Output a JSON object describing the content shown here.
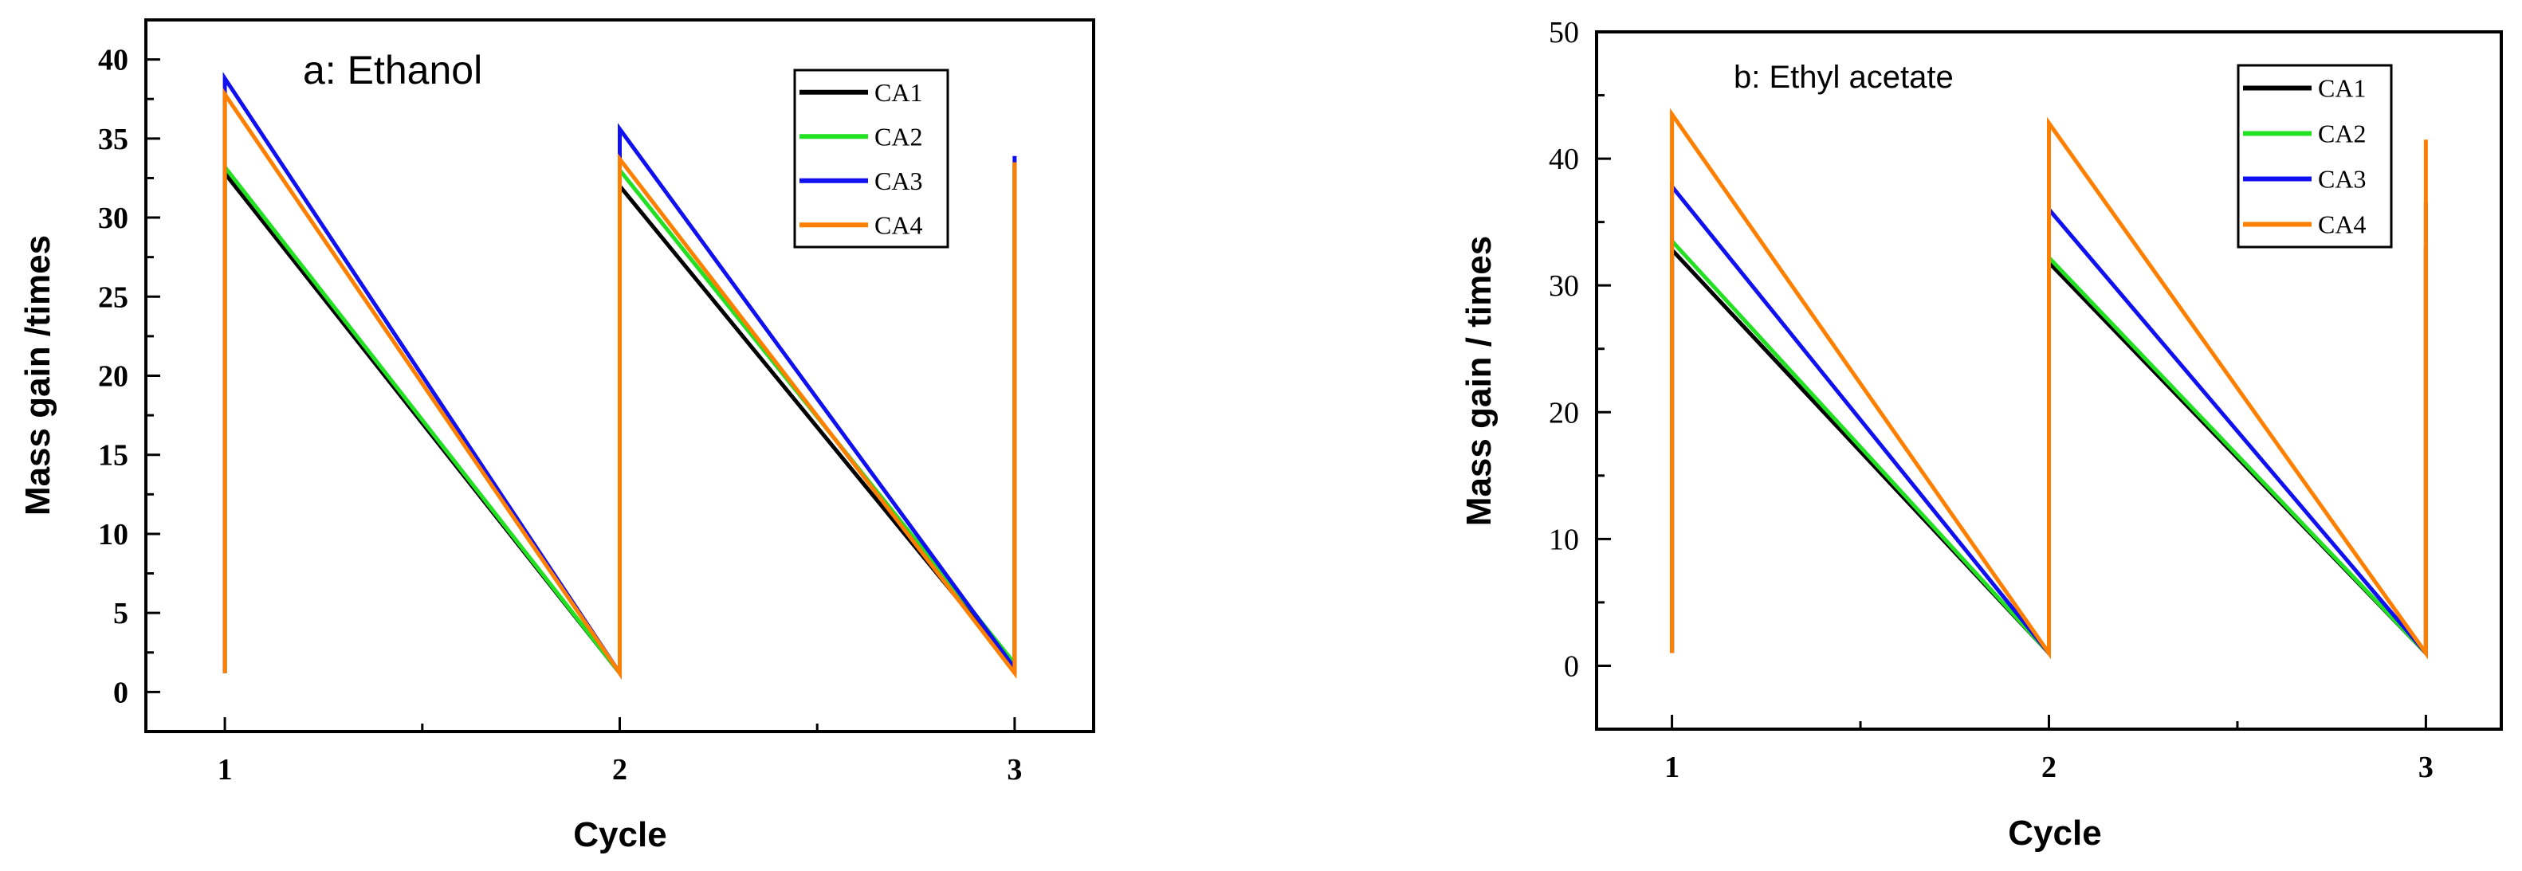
{
  "chart_data": [
    {
      "type": "line",
      "title": "a: Ethanol",
      "xlabel": "Cycle",
      "ylabel": "Mass gain /times",
      "xlim": [
        0.8,
        3.2
      ],
      "ylim": [
        -2.5,
        42.5
      ],
      "xticks": [
        1,
        2,
        3
      ],
      "xtick_labels": [
        "1",
        "2",
        "3"
      ],
      "yticks": [
        0,
        5,
        10,
        15,
        20,
        25,
        30,
        35,
        40
      ],
      "ytick_labels": [
        "0",
        "5",
        "10",
        "15",
        "20",
        "25",
        "30",
        "35",
        "40"
      ],
      "legend": "top-right",
      "series": [
        {
          "name": "CA1",
          "color": "#000000",
          "x": [
            1,
            1,
            2,
            2,
            3,
            3
          ],
          "y": [
            1.2,
            32.8,
            1.2,
            32.0,
            1.5,
            33.5
          ]
        },
        {
          "name": "CA2",
          "color": "#22e022",
          "x": [
            1,
            1,
            2,
            2,
            3,
            3
          ],
          "y": [
            1.2,
            33.2,
            1.2,
            33.0,
            1.8,
            33.5
          ]
        },
        {
          "name": "CA3",
          "color": "#1010f0",
          "x": [
            1,
            1,
            2,
            2,
            3,
            3
          ],
          "y": [
            1.2,
            38.8,
            1.2,
            35.6,
            1.5,
            33.9
          ]
        },
        {
          "name": "CA4",
          "color": "#ff8000",
          "x": [
            1,
            1,
            2,
            2,
            3,
            3
          ],
          "y": [
            1.2,
            37.8,
            1.2,
            33.7,
            1.2,
            33.5
          ]
        }
      ]
    },
    {
      "type": "line",
      "title": "b: Ethyl acetate",
      "xlabel": "Cycle",
      "ylabel": "Mass gain / times",
      "xlim": [
        0.8,
        3.2
      ],
      "ylim": [
        -5,
        50
      ],
      "xticks": [
        1,
        2,
        3
      ],
      "xtick_labels": [
        "1",
        "2",
        "3"
      ],
      "yticks": [
        0,
        10,
        20,
        30,
        40,
        50
      ],
      "ytick_labels": [
        "0",
        "10",
        "20",
        "30",
        "40",
        "50"
      ],
      "legend": "top-right",
      "series": [
        {
          "name": "CA1",
          "color": "#000000",
          "x": [
            1,
            1,
            2,
            2,
            3,
            3
          ],
          "y": [
            1.0,
            32.8,
            1.0,
            31.8,
            1.0,
            33.0
          ]
        },
        {
          "name": "CA2",
          "color": "#22e022",
          "x": [
            1,
            1,
            2,
            2,
            3,
            3
          ],
          "y": [
            1.0,
            33.5,
            1.0,
            32.2,
            1.0,
            33.0
          ]
        },
        {
          "name": "CA3",
          "color": "#1010f0",
          "x": [
            1,
            1,
            2,
            2,
            3,
            3
          ],
          "y": [
            1.0,
            37.8,
            1.0,
            36.0,
            1.0,
            36.5
          ]
        },
        {
          "name": "CA4",
          "color": "#ff8000",
          "x": [
            1,
            1,
            2,
            2,
            3,
            3
          ],
          "y": [
            1.0,
            43.5,
            1.0,
            42.8,
            1.0,
            41.5
          ]
        }
      ]
    }
  ]
}
